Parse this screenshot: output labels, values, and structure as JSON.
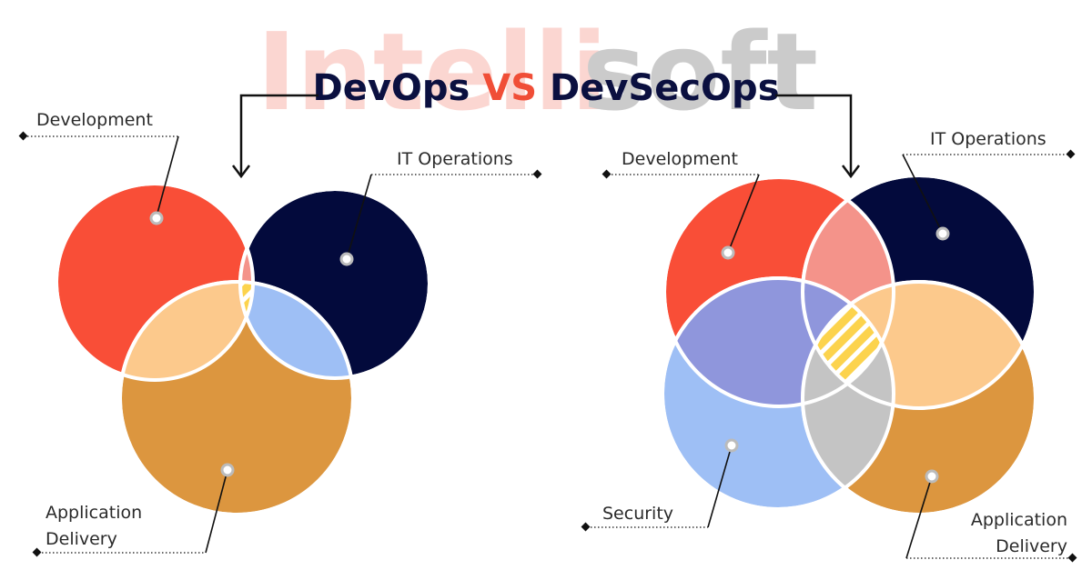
{
  "watermark": [
    "Intelli",
    "soft"
  ],
  "title": {
    "left": "DevOps",
    "vs": "VS",
    "right": "DevSecOps"
  },
  "devops": {
    "development": "Development",
    "it_operations": "IT Operations",
    "application_delivery": [
      "Application",
      "Delivery"
    ]
  },
  "devsecops": {
    "development": "Development",
    "it_operations": "IT Operations",
    "security": "Security",
    "application_delivery": [
      "Application",
      "Delivery"
    ]
  }
}
